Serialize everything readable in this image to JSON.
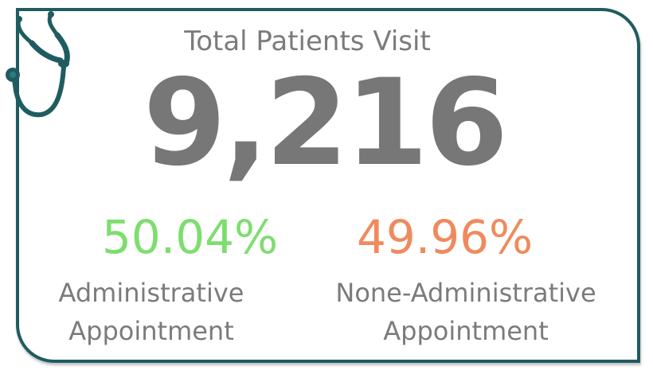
{
  "card": {
    "title": "Total Patients Visit",
    "total": "9,216"
  },
  "icon": "stethoscope-icon",
  "stats": [
    {
      "percent": "50.04%",
      "line1": "Administrative",
      "line2": "Appointment",
      "color": "#7dde6e"
    },
    {
      "percent": "49.96%",
      "line1": "None-Administrative",
      "line2": "Appointment",
      "color": "#f08a5e"
    }
  ],
  "colors": {
    "border": "#1f5c5f",
    "text": "#7b7b7b",
    "number": "#777777"
  }
}
